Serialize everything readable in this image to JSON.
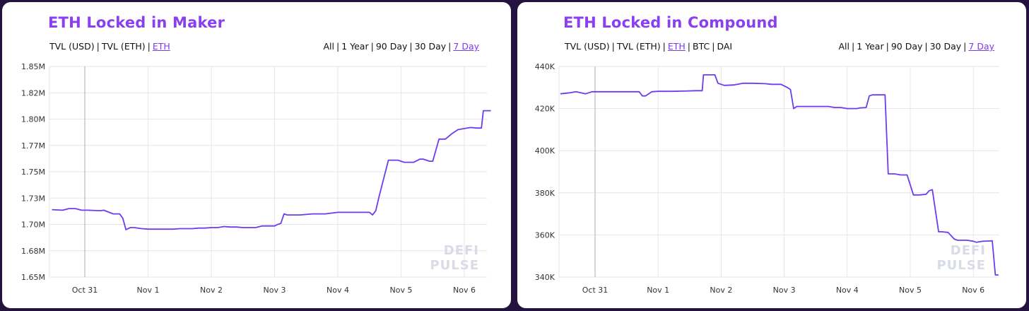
{
  "charts": [
    {
      "title": "ETH Locked in Maker",
      "metric_options": [
        "TVL (USD)",
        "TVL (ETH)",
        "ETH"
      ],
      "active_metric": "ETH",
      "range_options": [
        "All",
        "1 Year",
        "90 Day",
        "30 Day",
        "7 Day"
      ],
      "active_range": "7 Day",
      "watermark": [
        "DEFI",
        "PULSE"
      ]
    },
    {
      "title": "ETH Locked in Compound",
      "metric_options": [
        "TVL (USD)",
        "TVL (ETH)",
        "ETH",
        "BTC",
        "DAI"
      ],
      "active_metric": "ETH",
      "range_options": [
        "All",
        "1 Year",
        "90 Day",
        "30 Day",
        "7 Day"
      ],
      "active_range": "7 Day",
      "watermark": [
        "DEFI",
        "PULSE"
      ]
    }
  ],
  "colors": {
    "line": "#6b3cf0",
    "accent": "#8a3ff0",
    "grid": "#e6e6e6",
    "crosshair": "#c8c8c8",
    "background": "#24123f"
  },
  "chart_data": [
    {
      "type": "line",
      "title": "ETH Locked in Maker",
      "x_ticks": [
        "Oct 31",
        "Nov 1",
        "Nov 2",
        "Nov 3",
        "Nov 4",
        "Nov 5",
        "Nov 6"
      ],
      "y_ticks": [
        "1.65M",
        "1.68M",
        "1.70M",
        "1.73M",
        "1.75M",
        "1.77M",
        "1.80M",
        "1.82M",
        "1.85M"
      ],
      "y_tick_values": [
        1650000,
        1675000,
        1700000,
        1725000,
        1750000,
        1775000,
        1800000,
        1825000,
        1850000
      ],
      "ylim": [
        1650000,
        1850000
      ],
      "xlim": [
        -0.52,
        6.42
      ],
      "crosshair_x": 0,
      "series": [
        {
          "x": [
            -0.52,
            -0.35,
            -0.25,
            -0.15,
            -0.05,
            0.05,
            0.25,
            0.3,
            0.45,
            0.55,
            0.6,
            0.65,
            0.72,
            0.78,
            0.9,
            1.0,
            1.1,
            1.2,
            1.3,
            1.4,
            1.5,
            1.6,
            1.7,
            1.8,
            1.9,
            2.0,
            2.1,
            2.2,
            2.3,
            2.4,
            2.5,
            2.6,
            2.7,
            2.8,
            2.9,
            3.0,
            3.05,
            3.1,
            3.15,
            3.2,
            3.4,
            3.6,
            3.8,
            4.0,
            4.1,
            4.2,
            4.25,
            4.3,
            4.35,
            4.4,
            4.5,
            4.55,
            4.6,
            4.65,
            4.8,
            4.95,
            5.0,
            5.05,
            5.15,
            5.2,
            5.3,
            5.35,
            5.45,
            5.5,
            5.6,
            5.7,
            5.8,
            5.9,
            6.0,
            6.1,
            6.2,
            6.27,
            6.3,
            6.42
          ],
          "y": [
            1714000,
            1713500,
            1715000,
            1715000,
            1713500,
            1713500,
            1713000,
            1713500,
            1710000,
            1710000,
            1706000,
            1695000,
            1697000,
            1697000,
            1696000,
            1695500,
            1695500,
            1695500,
            1695500,
            1695500,
            1696000,
            1696000,
            1696000,
            1696500,
            1696500,
            1697000,
            1697000,
            1698000,
            1697500,
            1697500,
            1697000,
            1697000,
            1697000,
            1698500,
            1698500,
            1698500,
            1700000,
            1701000,
            1710000,
            1709000,
            1709000,
            1710000,
            1710000,
            1711500,
            1711500,
            1711500,
            1711500,
            1711500,
            1711500,
            1711500,
            1711500,
            1709000,
            1713000,
            1726000,
            1761000,
            1761000,
            1760000,
            1759000,
            1759000,
            1759000,
            1762000,
            1762000,
            1760000,
            1760000,
            1781000,
            1781000,
            1786000,
            1790000,
            1791000,
            1792000,
            1791500,
            1791500,
            1808000,
            1808000
          ]
        }
      ]
    },
    {
      "type": "line",
      "title": "ETH Locked in Compound",
      "x_ticks": [
        "Oct 31",
        "Nov 1",
        "Nov 2",
        "Nov 3",
        "Nov 4",
        "Nov 5",
        "Nov 6"
      ],
      "y_ticks": [
        "340K",
        "360K",
        "380K",
        "400K",
        "420K",
        "440K"
      ],
      "y_tick_values": [
        340000,
        360000,
        380000,
        400000,
        420000,
        440000
      ],
      "ylim": [
        340000,
        440000
      ],
      "xlim": [
        -0.55,
        6.4
      ],
      "crosshair_x": 0,
      "series": [
        {
          "x": [
            -0.55,
            -0.4,
            -0.3,
            -0.15,
            -0.05,
            0.05,
            0.3,
            0.6,
            0.7,
            0.75,
            0.8,
            0.9,
            1.0,
            1.2,
            1.4,
            1.6,
            1.7,
            1.72,
            1.8,
            1.9,
            1.95,
            2.05,
            2.2,
            2.35,
            2.5,
            2.7,
            2.8,
            2.9,
            2.95,
            3.05,
            3.1,
            3.15,
            3.2,
            3.3,
            3.5,
            3.7,
            3.8,
            3.9,
            4.0,
            4.15,
            4.2,
            4.3,
            4.35,
            4.4,
            4.45,
            4.6,
            4.65,
            4.75,
            4.85,
            4.9,
            4.95,
            5.05,
            5.15,
            5.25,
            5.3,
            5.35,
            5.45,
            5.5,
            5.6,
            5.7,
            5.75,
            5.9,
            6.0,
            6.05,
            6.15,
            6.3,
            6.35,
            6.4
          ],
          "y": [
            427000,
            427500,
            428000,
            427000,
            428000,
            428000,
            428000,
            428000,
            428000,
            426000,
            426000,
            428000,
            428200,
            428200,
            428300,
            428500,
            428500,
            436000,
            436000,
            436000,
            432000,
            431000,
            431200,
            432000,
            432000,
            431800,
            431500,
            431500,
            431500,
            430000,
            429000,
            420000,
            421000,
            421000,
            421000,
            421000,
            420500,
            420500,
            420000,
            420000,
            420300,
            420500,
            426000,
            426500,
            426500,
            426500,
            389000,
            389000,
            388500,
            388500,
            388500,
            379000,
            379000,
            379300,
            381000,
            381500,
            361500,
            361500,
            361200,
            358000,
            357500,
            357500,
            357000,
            356500,
            357000,
            357200,
            341000,
            341000
          ]
        }
      ]
    }
  ]
}
